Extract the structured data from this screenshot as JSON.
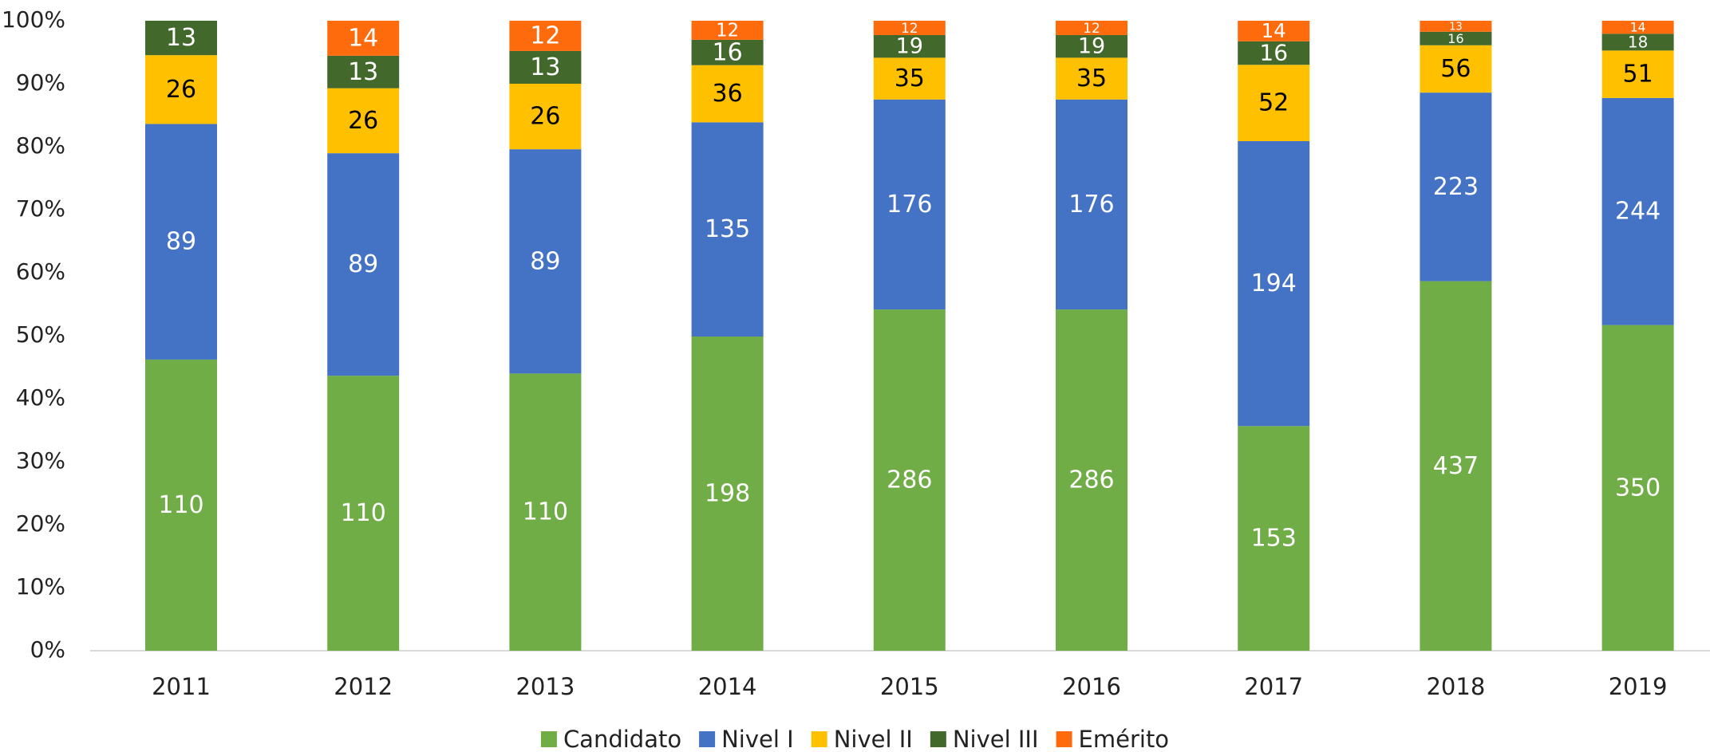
{
  "chart_data": {
    "type": "bar",
    "stacking": "percent",
    "categories": [
      "2011",
      "2012",
      "2013",
      "2014",
      "2015",
      "2016",
      "2017",
      "2018",
      "2019"
    ],
    "series": [
      {
        "name": "Candidato",
        "color": "#70ad47",
        "label_color": "#ffffff",
        "values": [
          110,
          110,
          110,
          198,
          286,
          286,
          153,
          437,
          350
        ]
      },
      {
        "name": "Nivel I",
        "color": "#4472c4",
        "label_color": "#ffffff",
        "values": [
          89,
          89,
          89,
          135,
          176,
          176,
          194,
          223,
          244
        ]
      },
      {
        "name": "Nivel II",
        "color": "#ffc000",
        "label_color": "#000000",
        "values": [
          26,
          26,
          26,
          36,
          35,
          35,
          52,
          56,
          51
        ]
      },
      {
        "name": "Nivel III",
        "color": "#43682b",
        "label_color": "#ffffff",
        "values": [
          13,
          13,
          13,
          16,
          19,
          19,
          16,
          16,
          18
        ]
      },
      {
        "name": "Emérito",
        "color": "#fe6b0c",
        "label_color": "#ffffff",
        "values": [
          null,
          14,
          12,
          12,
          12,
          12,
          14,
          13,
          14
        ]
      }
    ],
    "ylim": [
      0,
      100
    ],
    "yticks": [
      {
        "value": 0,
        "label": "0%"
      },
      {
        "value": 10,
        "label": "10%"
      },
      {
        "value": 20,
        "label": "20%"
      },
      {
        "value": 30,
        "label": "30%"
      },
      {
        "value": 40,
        "label": "40%"
      },
      {
        "value": 50,
        "label": "50%"
      },
      {
        "value": 60,
        "label": "60%"
      },
      {
        "value": 70,
        "label": "70%"
      },
      {
        "value": 80,
        "label": "80%"
      },
      {
        "value": 90,
        "label": "90%"
      },
      {
        "value": 100,
        "label": "100%"
      }
    ],
    "legend": "bottom"
  }
}
